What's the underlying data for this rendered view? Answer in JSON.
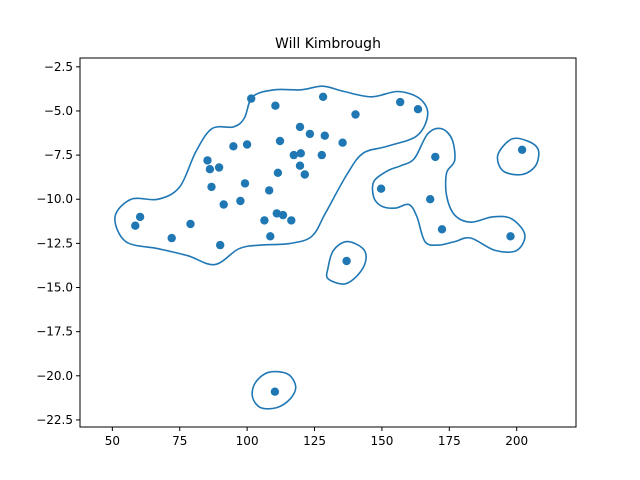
{
  "chart_data": {
    "type": "scatter",
    "title": "Will Kimbrough",
    "xlabel": "",
    "ylabel": "",
    "xlim": [
      38,
      222
    ],
    "ylim": [
      -22.9,
      -2.0
    ],
    "xticks": [
      50,
      75,
      100,
      125,
      150,
      175,
      200
    ],
    "xtick_labels": [
      "50",
      "75",
      "100",
      "125",
      "150",
      "175",
      "200"
    ],
    "yticks": [
      -2.5,
      -5.0,
      -7.5,
      -10.0,
      -12.5,
      -15.0,
      -17.5,
      -20.0,
      -22.5
    ],
    "ytick_labels": [
      "−2.5",
      "−5.0",
      "−7.5",
      "−10.0",
      "−12.5",
      "−15.0",
      "−17.5",
      "−20.0",
      "−22.5"
    ],
    "grid": false,
    "color": "#1f77b4",
    "points": [
      [
        58.5,
        -11.5
      ],
      [
        60.3,
        -11.0
      ],
      [
        72.0,
        -12.2
      ],
      [
        79.0,
        -11.4
      ],
      [
        85.3,
        -7.8
      ],
      [
        86.2,
        -8.3
      ],
      [
        86.8,
        -9.3
      ],
      [
        89.6,
        -8.2
      ],
      [
        90.0,
        -12.6
      ],
      [
        91.3,
        -10.3
      ],
      [
        94.9,
        -7.0
      ],
      [
        97.5,
        -10.1
      ],
      [
        99.2,
        -9.1
      ],
      [
        100.0,
        -6.9
      ],
      [
        101.5,
        -4.3
      ],
      [
        106.4,
        -11.2
      ],
      [
        108.2,
        -9.5
      ],
      [
        108.6,
        -12.1
      ],
      [
        110.5,
        -4.7
      ],
      [
        111.0,
        -10.8
      ],
      [
        111.4,
        -8.5
      ],
      [
        112.2,
        -6.7
      ],
      [
        113.3,
        -10.9
      ],
      [
        116.4,
        -11.2
      ],
      [
        117.3,
        -7.5
      ],
      [
        119.6,
        -5.9
      ],
      [
        119.6,
        -8.1
      ],
      [
        119.9,
        -7.4
      ],
      [
        121.4,
        -8.6
      ],
      [
        123.3,
        -6.3
      ],
      [
        127.7,
        -7.5
      ],
      [
        128.2,
        -4.2
      ],
      [
        128.8,
        -6.4
      ],
      [
        135.4,
        -6.8
      ],
      [
        136.9,
        -13.5
      ],
      [
        140.2,
        -5.2
      ],
      [
        149.7,
        -9.4
      ],
      [
        156.8,
        -4.5
      ],
      [
        163.4,
        -4.9
      ],
      [
        167.9,
        -10.0
      ],
      [
        169.8,
        -7.6
      ],
      [
        172.3,
        -11.7
      ],
      [
        197.7,
        -12.1
      ],
      [
        202.0,
        -7.2
      ],
      [
        110.3,
        -20.9
      ]
    ],
    "contours": [
      [
        [
          99,
          -5.4
        ],
        [
          102,
          -4.2
        ],
        [
          110,
          -3.8
        ],
        [
          120,
          -3.8
        ],
        [
          128,
          -3.6
        ],
        [
          136,
          -3.9
        ],
        [
          146,
          -4.2
        ],
        [
          156,
          -3.9
        ],
        [
          164,
          -4.3
        ],
        [
          167,
          -5.2
        ],
        [
          163,
          -6.4
        ],
        [
          152,
          -7.0
        ],
        [
          143,
          -7.4
        ],
        [
          137,
          -8.6
        ],
        [
          129,
          -10.8
        ],
        [
          124,
          -12.1
        ],
        [
          116,
          -12.5
        ],
        [
          105,
          -12.6
        ],
        [
          97,
          -12.8
        ],
        [
          88,
          -13.7
        ],
        [
          78,
          -13.2
        ],
        [
          67,
          -12.8
        ],
        [
          55,
          -12.4
        ],
        [
          51,
          -11.0
        ],
        [
          57,
          -10.0
        ],
        [
          67,
          -10.0
        ],
        [
          75,
          -9.3
        ],
        [
          81,
          -7.3
        ],
        [
          87,
          -6.0
        ],
        [
          95,
          -5.9
        ]
      ],
      [
        [
          147,
          -9.0
        ],
        [
          152,
          -8.4
        ],
        [
          157,
          -8.1
        ],
        [
          162,
          -7.7
        ],
        [
          167,
          -6.3
        ],
        [
          172,
          -6.0
        ],
        [
          176,
          -6.6
        ],
        [
          177,
          -7.8
        ],
        [
          174,
          -8.5
        ],
        [
          174,
          -9.8
        ],
        [
          177,
          -10.9
        ],
        [
          183,
          -11.3
        ],
        [
          191,
          -11.0
        ],
        [
          198,
          -11.1
        ],
        [
          203,
          -12.0
        ],
        [
          200,
          -12.9
        ],
        [
          192,
          -12.9
        ],
        [
          183,
          -12.2
        ],
        [
          177,
          -12.4
        ],
        [
          171,
          -12.6
        ],
        [
          166,
          -12.4
        ],
        [
          163,
          -11.0
        ],
        [
          160,
          -10.3
        ],
        [
          155,
          -10.5
        ],
        [
          150,
          -10.4
        ],
        [
          147,
          -9.9
        ]
      ],
      [
        [
          193,
          -7.5
        ],
        [
          198,
          -6.6
        ],
        [
          204,
          -6.7
        ],
        [
          208,
          -7.2
        ],
        [
          207,
          -8.1
        ],
        [
          202,
          -8.6
        ],
        [
          195,
          -8.4
        ]
      ],
      [
        [
          130,
          -13.9
        ],
        [
          132,
          -12.9
        ],
        [
          137,
          -12.4
        ],
        [
          143,
          -12.8
        ],
        [
          144,
          -13.5
        ],
        [
          141,
          -14.3
        ],
        [
          136,
          -14.8
        ],
        [
          130,
          -14.5
        ]
      ],
      [
        [
          102,
          -21.2
        ],
        [
          103,
          -20.4
        ],
        [
          108,
          -19.8
        ],
        [
          115,
          -19.9
        ],
        [
          118,
          -20.6
        ],
        [
          116,
          -21.3
        ],
        [
          111,
          -21.8
        ],
        [
          105,
          -21.8
        ]
      ]
    ]
  }
}
